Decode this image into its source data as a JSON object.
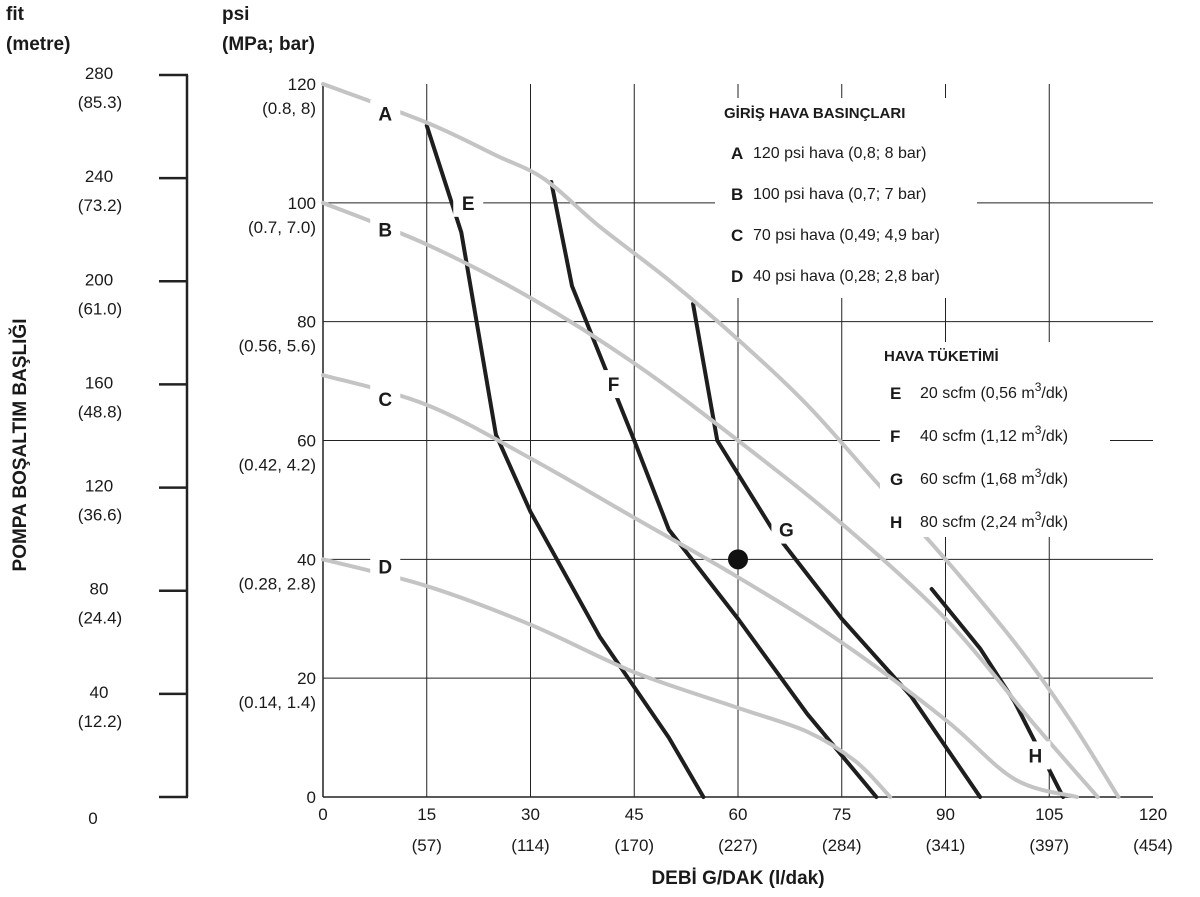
{
  "chart_data": {
    "type": "line",
    "xlabel": "DEBİ G/DAK (l/dak)",
    "ylabel": "POMPA BOŞALTIM BAŞLIĞI",
    "left_axis_unit": [
      "fit",
      "(metre)"
    ],
    "right_axis_unit": [
      "psi",
      "(MPa; bar)"
    ],
    "xlim": [
      0,
      120
    ],
    "ylim": [
      0,
      120
    ],
    "x_ticks": [
      {
        "value": 0,
        "label": "0",
        "sub": ""
      },
      {
        "value": 15,
        "label": "15",
        "sub": "(57)"
      },
      {
        "value": 30,
        "label": "30",
        "sub": "(114)"
      },
      {
        "value": 45,
        "label": "45",
        "sub": "(170)"
      },
      {
        "value": 60,
        "label": "60",
        "sub": "(227)"
      },
      {
        "value": 75,
        "label": "75",
        "sub": "(284)"
      },
      {
        "value": 90,
        "label": "90",
        "sub": "(341)"
      },
      {
        "value": 105,
        "label": "105",
        "sub": "(397)"
      },
      {
        "value": 120,
        "label": "120",
        "sub": "(454)"
      }
    ],
    "y_ticks": [
      {
        "value": 0,
        "label": "0",
        "sub": ""
      },
      {
        "value": 20,
        "label": "20",
        "sub": "(0.14, 1.4)"
      },
      {
        "value": 40,
        "label": "40",
        "sub": "(0.28, 2.8)"
      },
      {
        "value": 60,
        "label": "60",
        "sub": "(0.42, 4.2)"
      },
      {
        "value": 80,
        "label": "80",
        "sub": "(0.56, 5.6)"
      },
      {
        "value": 100,
        "label": "100",
        "sub": "(0.7, 7.0)"
      },
      {
        "value": 120,
        "label": "120",
        "sub": "(0.8, 8)"
      }
    ],
    "feet_ticks": [
      {
        "value": 0,
        "label": "0",
        "sub": ""
      },
      {
        "value": 40,
        "label": "40",
        "sub": "(12.2)"
      },
      {
        "value": 80,
        "label": "80",
        "sub": "(24.4)"
      },
      {
        "value": 120,
        "label": "120",
        "sub": "(36.6)"
      },
      {
        "value": 160,
        "label": "160",
        "sub": "(48.8)"
      },
      {
        "value": 200,
        "label": "200",
        "sub": "(61.0)"
      },
      {
        "value": 240,
        "label": "240",
        "sub": "(73.2)"
      },
      {
        "value": 280,
        "label": "280",
        "sub": "(85.3)"
      }
    ],
    "feet_range": [
      0,
      280
    ],
    "grid": true,
    "series": [
      {
        "name": "A",
        "kind": "air_pressure",
        "color": "#c4c4c4",
        "points": [
          [
            0,
            120
          ],
          [
            15,
            113.5
          ],
          [
            25,
            108
          ],
          [
            32,
            104
          ],
          [
            40,
            96
          ],
          [
            50,
            87
          ],
          [
            60,
            77
          ],
          [
            70,
            66
          ],
          [
            80,
            53
          ],
          [
            90,
            40
          ],
          [
            100,
            26
          ],
          [
            108,
            13
          ],
          [
            115,
            0
          ]
        ],
        "label_at": [
          9,
          115
        ]
      },
      {
        "name": "B",
        "kind": "air_pressure",
        "color": "#c4c4c4",
        "points": [
          [
            0,
            100
          ],
          [
            15,
            93
          ],
          [
            30,
            84
          ],
          [
            45,
            73
          ],
          [
            60,
            60
          ],
          [
            75,
            46
          ],
          [
            90,
            30
          ],
          [
            103,
            12
          ],
          [
            112,
            0
          ]
        ],
        "label_at": [
          9,
          95.5
        ]
      },
      {
        "name": "C",
        "kind": "air_pressure",
        "color": "#c4c4c4",
        "points": [
          [
            0,
            71
          ],
          [
            15,
            66
          ],
          [
            30,
            57
          ],
          [
            45,
            47
          ],
          [
            60,
            37
          ],
          [
            75,
            26
          ],
          [
            90,
            13
          ],
          [
            100,
            3
          ],
          [
            109,
            0
          ]
        ],
        "label_at": [
          9,
          67
        ]
      },
      {
        "name": "D",
        "kind": "air_pressure",
        "color": "#c4c4c4",
        "points": [
          [
            0,
            40
          ],
          [
            15,
            35.5
          ],
          [
            30,
            29
          ],
          [
            45,
            21
          ],
          [
            60,
            15
          ],
          [
            70,
            11
          ],
          [
            77,
            6
          ],
          [
            82,
            0
          ]
        ],
        "label_at": [
          9,
          38.8
        ]
      },
      {
        "name": "E",
        "kind": "air_consumption",
        "color": "#1e1e1e",
        "points": [
          [
            15,
            113
          ],
          [
            20,
            95
          ],
          [
            25,
            61
          ],
          [
            30,
            48
          ],
          [
            40,
            27
          ],
          [
            50,
            10
          ],
          [
            55,
            0
          ]
        ],
        "label_at": [
          21,
          100
        ]
      },
      {
        "name": "F",
        "kind": "air_consumption",
        "color": "#1e1e1e",
        "points": [
          [
            33,
            103.5
          ],
          [
            36,
            86
          ],
          [
            45,
            60
          ],
          [
            50,
            45
          ],
          [
            60,
            30
          ],
          [
            70,
            14
          ],
          [
            80,
            0
          ]
        ],
        "label_at": [
          42,
          69.5
        ]
      },
      {
        "name": "G",
        "kind": "air_consumption",
        "color": "#1e1e1e",
        "points": [
          [
            53.5,
            83
          ],
          [
            57,
            60
          ],
          [
            65,
            45
          ],
          [
            75,
            30
          ],
          [
            85,
            17
          ],
          [
            95,
            0
          ]
        ],
        "label_at": [
          67,
          45
        ]
      },
      {
        "name": "H",
        "kind": "air_consumption",
        "color": "#1e1e1e",
        "points": [
          [
            88,
            35
          ],
          [
            95,
            25
          ],
          [
            100,
            16
          ],
          [
            107,
            0
          ]
        ],
        "label_at": [
          103,
          7
        ]
      }
    ],
    "marker": {
      "x": 60,
      "y": 40
    }
  },
  "legend_pressure": {
    "title": "GİRİŞ HAVA BASINÇLARI",
    "items": [
      {
        "key": "A",
        "text": "120 psi hava (0,8; 8 bar)"
      },
      {
        "key": "B",
        "text": "100 psi hava (0,7; 7 bar)"
      },
      {
        "key": "C",
        "text": "70 psi hava (0,49; 4,9 bar)"
      },
      {
        "key": "D",
        "text": "40 psi hava (0,28; 2,8 bar)"
      }
    ]
  },
  "legend_air": {
    "title": "HAVA TÜKETİMİ",
    "items": [
      {
        "key": "E",
        "text": "20 scfm (0,56 m",
        "sup": "3",
        "tail": "/dk)"
      },
      {
        "key": "F",
        "text": "40 scfm (1,12 m",
        "sup": "3",
        "tail": "/dk)"
      },
      {
        "key": "G",
        "text": "60 scfm (1,68 m",
        "sup": "3",
        "tail": "/dk)"
      },
      {
        "key": "H",
        "text": "80 scfm (2,24 m",
        "sup": "3",
        "tail": "/dk)"
      }
    ]
  }
}
